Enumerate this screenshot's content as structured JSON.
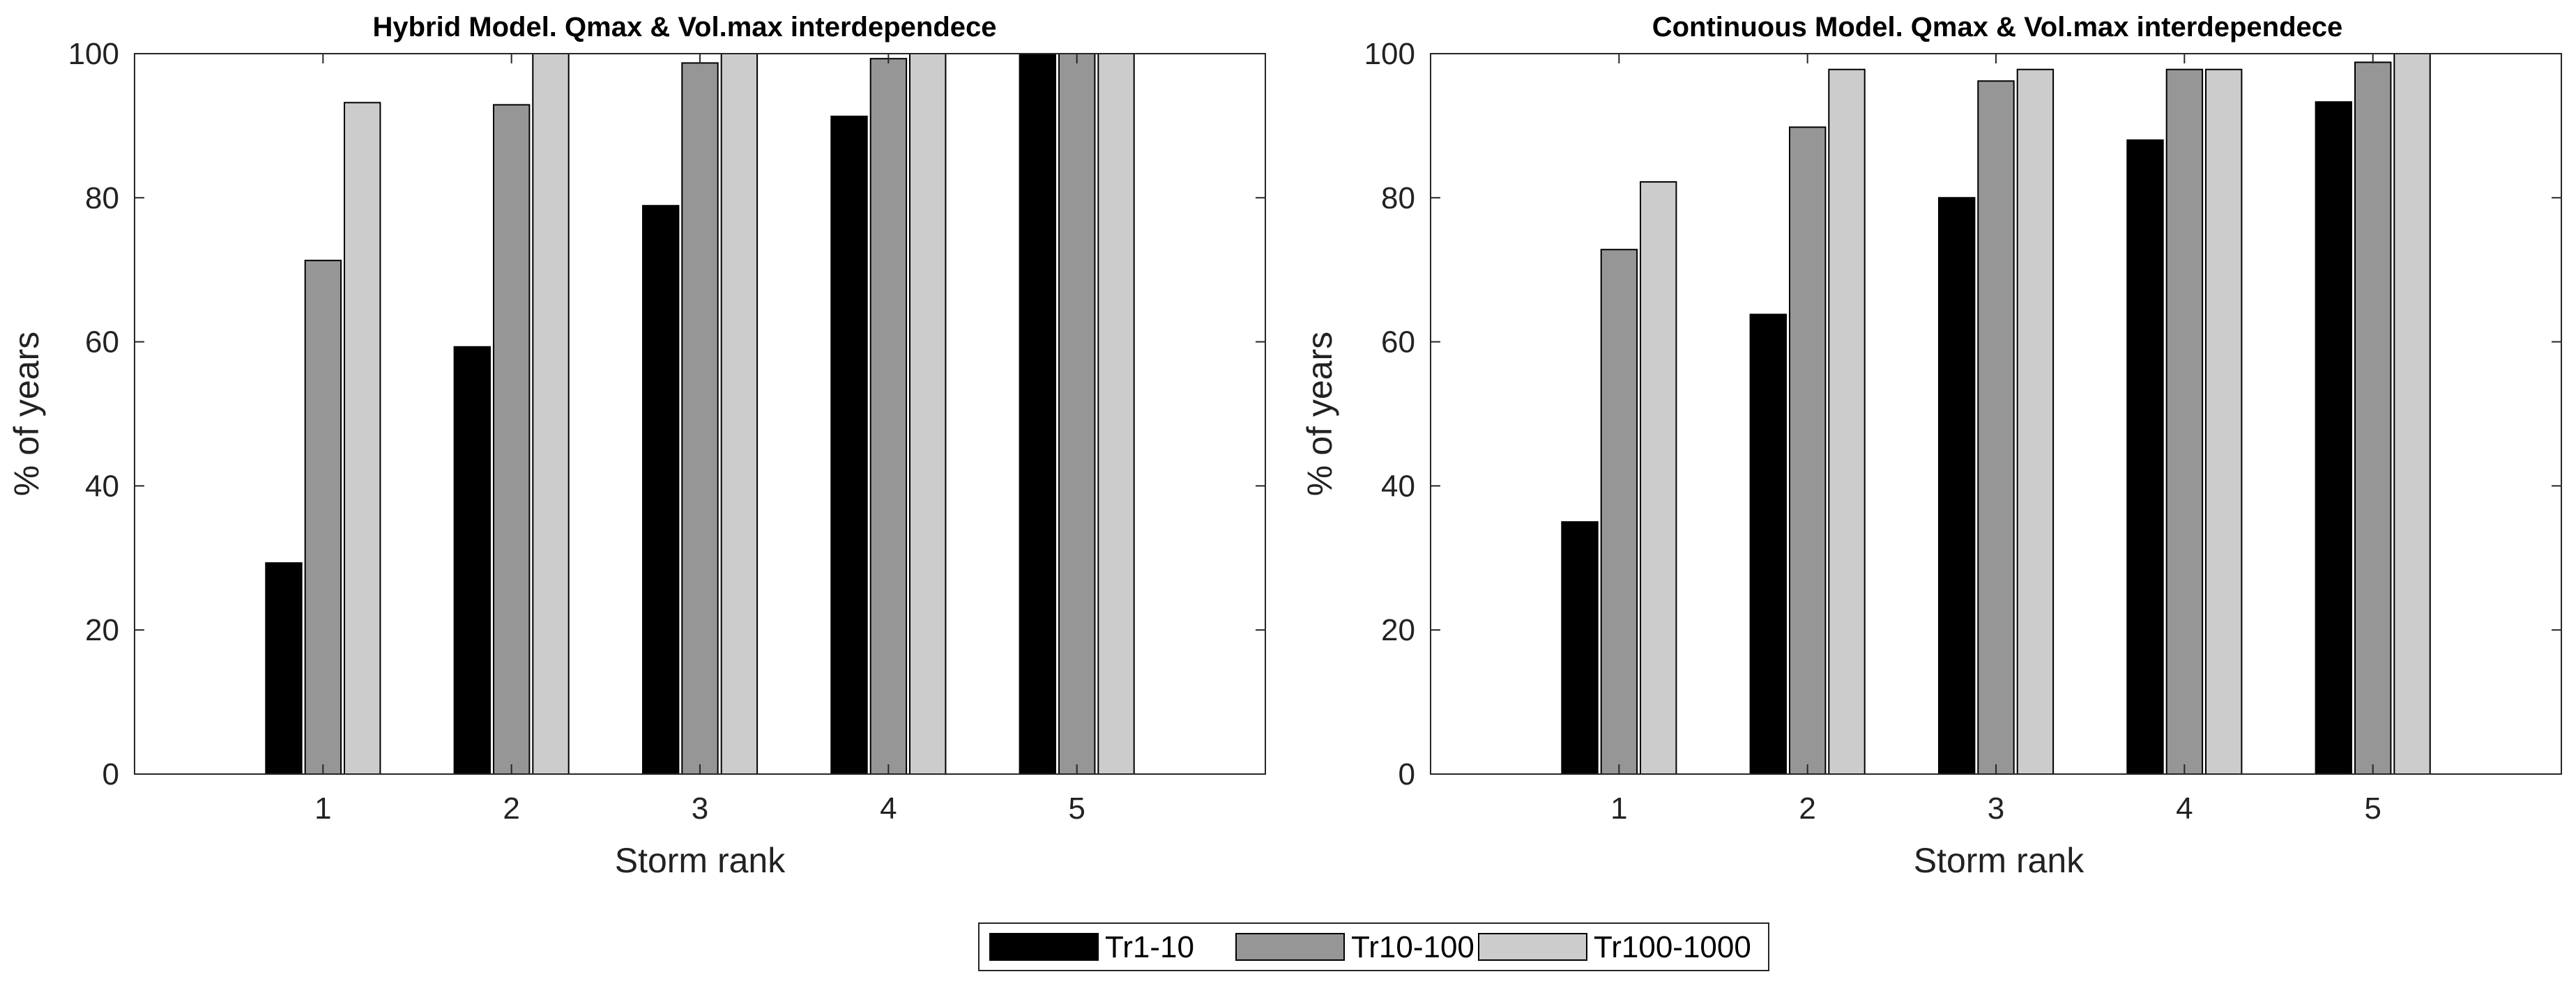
{
  "chart_data": [
    {
      "type": "bar",
      "title": "Hybrid Model. Qmax & Vol.max interdependece",
      "xlabel": "Storm rank",
      "ylabel": "% of years",
      "categories": [
        "1",
        "2",
        "3",
        "4",
        "5"
      ],
      "xlim": [
        0,
        6
      ],
      "ylim": [
        0,
        100
      ],
      "yticks": [
        "0",
        "20",
        "40",
        "60",
        "80",
        "100"
      ],
      "grid": false,
      "series": [
        {
          "name": "Tr1-10",
          "color": "#000000",
          "values": [
            29.3,
            59.3,
            78.9,
            91.3,
            100
          ]
        },
        {
          "name": "Tr10-100",
          "color": "#969696",
          "values": [
            71.3,
            92.9,
            98.7,
            99.3,
            100
          ]
        },
        {
          "name": "Tr100-1000",
          "color": "#cccccc",
          "values": [
            93.2,
            100,
            100,
            100,
            100
          ]
        }
      ]
    },
    {
      "type": "bar",
      "title": "Continuous Model. Qmax & Vol.max interdependece",
      "xlabel": "Storm rank",
      "ylabel": "% of years",
      "categories": [
        "1",
        "2",
        "3",
        "4",
        "5"
      ],
      "xlim": [
        0,
        6
      ],
      "ylim": [
        0,
        100
      ],
      "yticks": [
        "0",
        "20",
        "40",
        "60",
        "80",
        "100"
      ],
      "grid": false,
      "series": [
        {
          "name": "Tr1-10",
          "color": "#000000",
          "values": [
            35.0,
            63.8,
            80.0,
            88.0,
            93.3
          ]
        },
        {
          "name": "Tr10-100",
          "color": "#969696",
          "values": [
            72.8,
            89.8,
            96.2,
            97.8,
            98.8
          ]
        },
        {
          "name": "Tr100-1000",
          "color": "#cccccc",
          "values": [
            82.2,
            97.8,
            97.8,
            97.8,
            100
          ]
        }
      ]
    }
  ],
  "legend": {
    "placement": "bottom-center",
    "orientation": "horizontal",
    "entries": [
      {
        "label": "Tr1-10",
        "color": "#000000"
      },
      {
        "label": "Tr10-100",
        "color": "#969696"
      },
      {
        "label": "Tr100-1000",
        "color": "#cccccc"
      }
    ]
  }
}
